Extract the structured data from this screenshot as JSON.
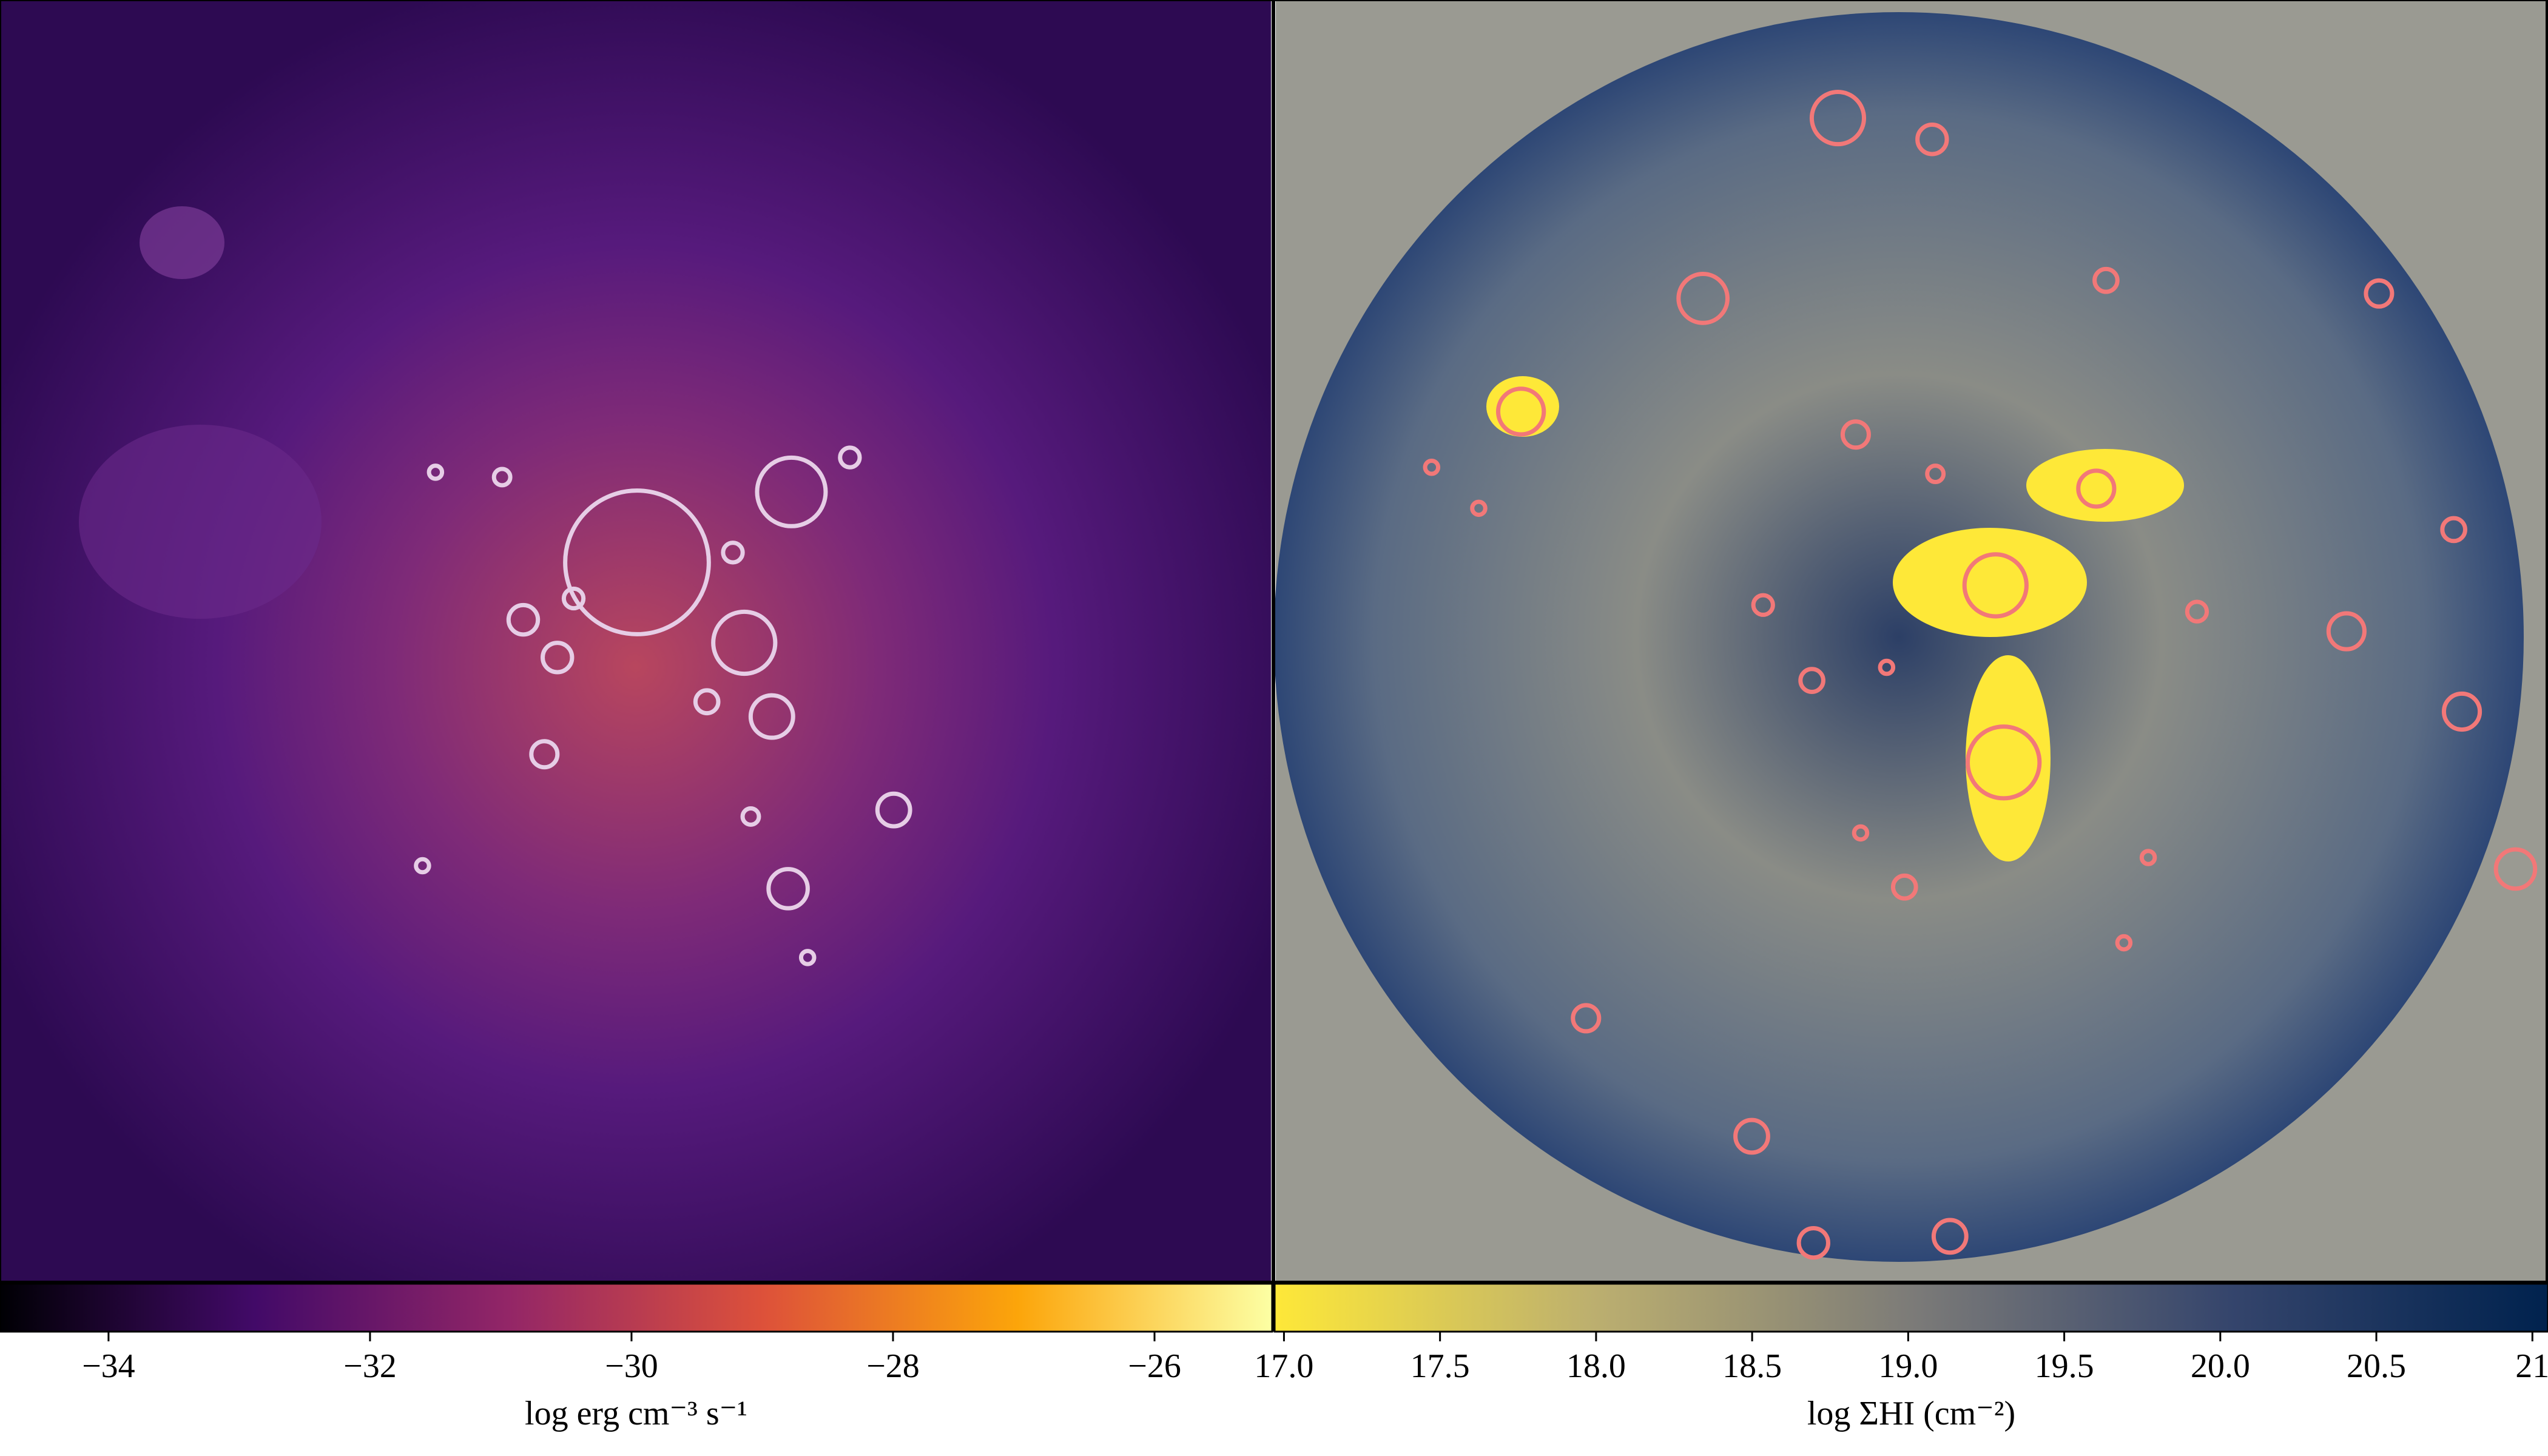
{
  "chart_data": [
    {
      "type": "image",
      "colormap": "inferno",
      "xlabel": "log erg cm⁻³ s⁻¹",
      "xlim": [
        -34.83,
        -25.1
      ],
      "xticks": [
        {
          "value": -34,
          "label": "−34"
        },
        {
          "value": -32,
          "label": "−32"
        },
        {
          "value": -30,
          "label": "−30"
        },
        {
          "value": -28,
          "label": "−28"
        },
        {
          "value": -26,
          "label": "−26"
        }
      ]
    },
    {
      "type": "image",
      "colormap": "cividis_r",
      "xlabel": "log ΣHI (cm⁻²)",
      "xlim": [
        16.97,
        21.05
      ],
      "xticks": [
        {
          "value": 17,
          "label": "17.0"
        },
        {
          "value": 17.5,
          "label": "17.5"
        },
        {
          "value": 18,
          "label": "18.0"
        },
        {
          "value": 18.5,
          "label": "18.5"
        },
        {
          "value": 19,
          "label": "19.0"
        },
        {
          "value": 19.5,
          "label": "19.5"
        },
        {
          "value": 20,
          "label": "20.0"
        },
        {
          "value": 20.5,
          "label": "20.5"
        },
        21
      ]
    }
  ]
}
